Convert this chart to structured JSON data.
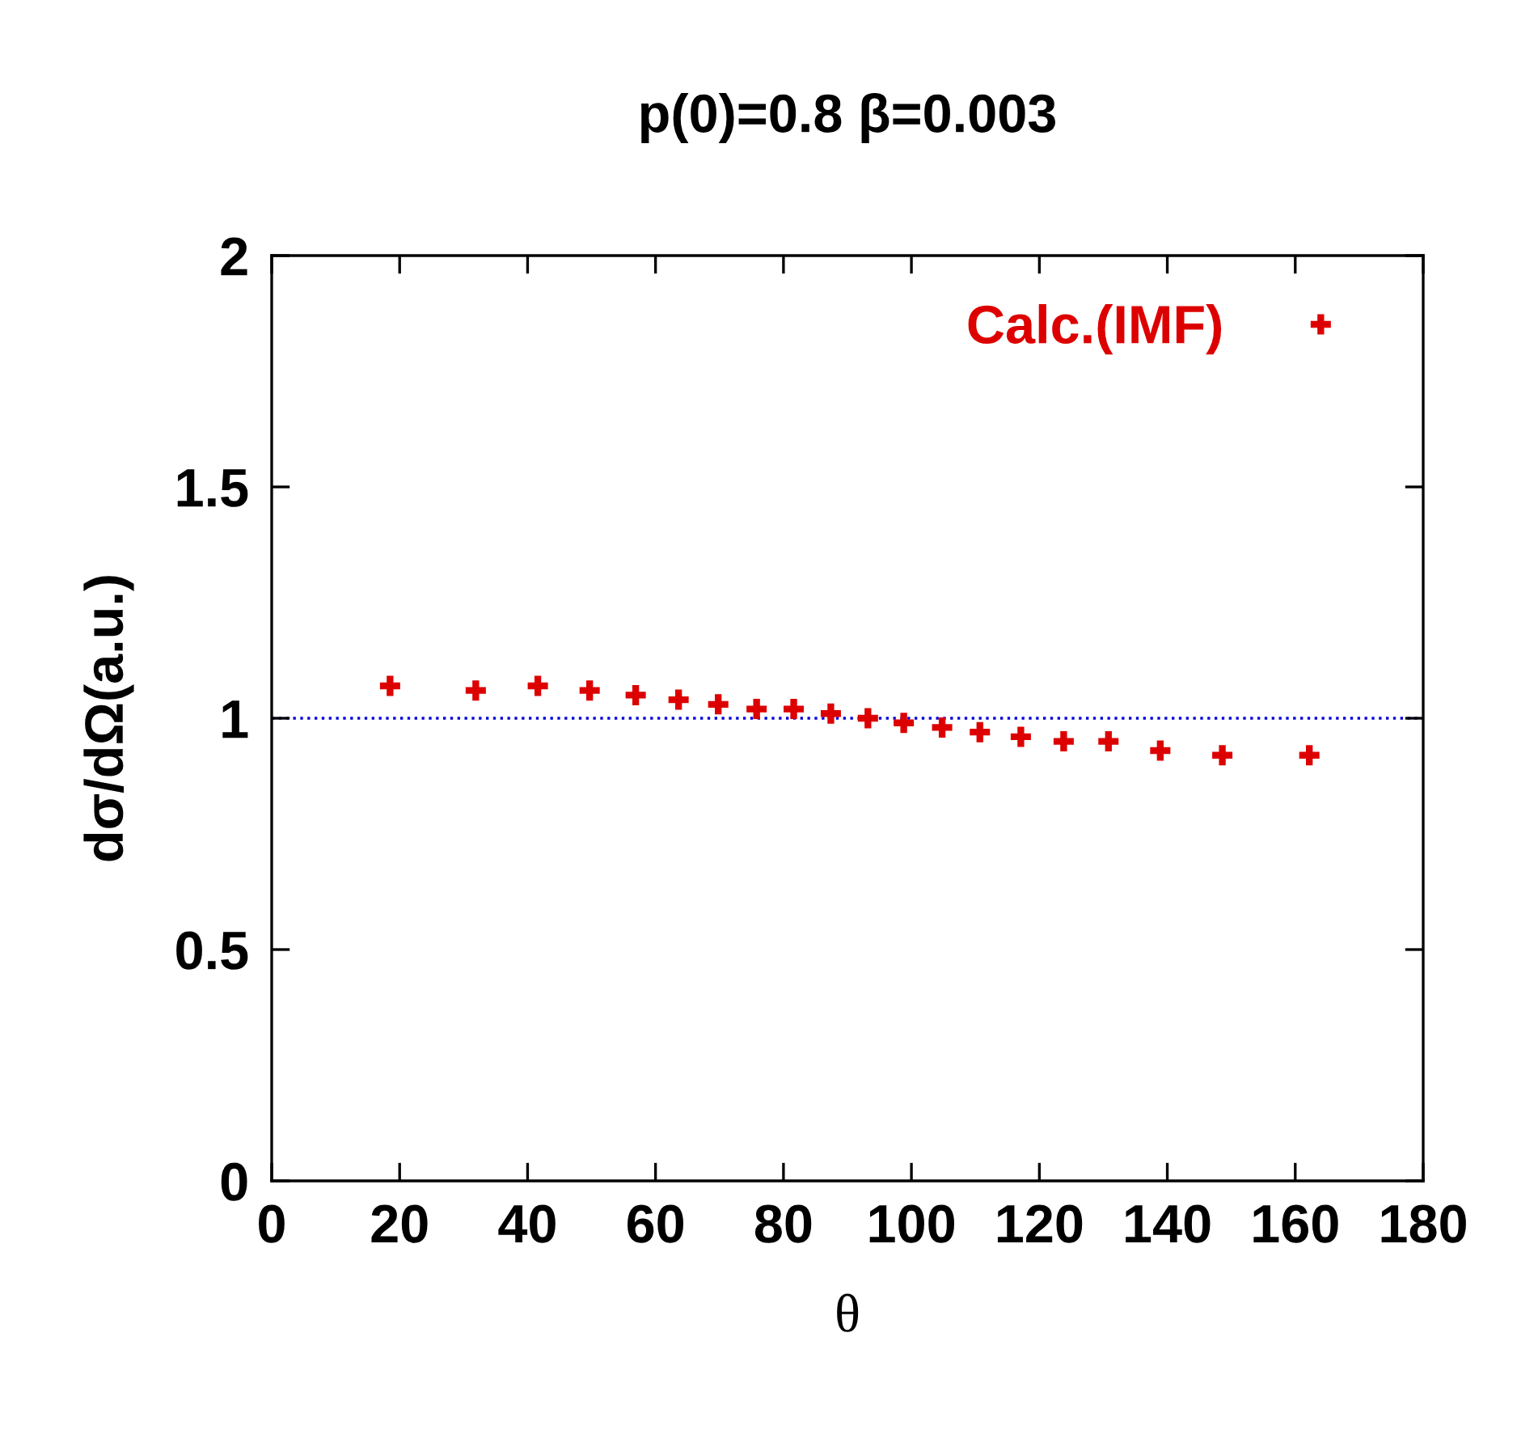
{
  "chart_data": {
    "type": "scatter",
    "title": "p(0)=0.8 β=0.003",
    "xlabel": "θ",
    "ylabel": "dσ/dΩ(a.u.)",
    "series": [
      {
        "name": "Calc.(IMF)",
        "color": "#dd0000",
        "x": [
          18.5,
          31.9,
          41.6,
          49.7,
          56.9,
          63.6,
          69.8,
          75.8,
          81.6,
          87.4,
          93.2,
          98.8,
          104.8,
          110.7,
          117.1,
          123.8,
          130.8,
          138.9,
          148.6,
          162.2
        ],
        "values": [
          1.07,
          1.06,
          1.07,
          1.06,
          1.05,
          1.04,
          1.03,
          1.02,
          1.02,
          1.01,
          1.0,
          0.99,
          0.98,
          0.97,
          0.96,
          0.95,
          0.95,
          0.93,
          0.92,
          0.92
        ]
      }
    ],
    "xlim": [
      0,
      180
    ],
    "xticks": [
      0,
      20,
      40,
      60,
      80,
      100,
      120,
      140,
      160,
      180
    ],
    "ylim": [
      0,
      2
    ],
    "yticks": [
      0,
      0.5,
      1,
      1.5,
      2
    ],
    "ref_lines": [
      {
        "axis": "y",
        "value": 1,
        "color": "#0000dd",
        "line_style": "dotted"
      }
    ],
    "marker": "cross",
    "legend": "top right",
    "grid": false
  }
}
